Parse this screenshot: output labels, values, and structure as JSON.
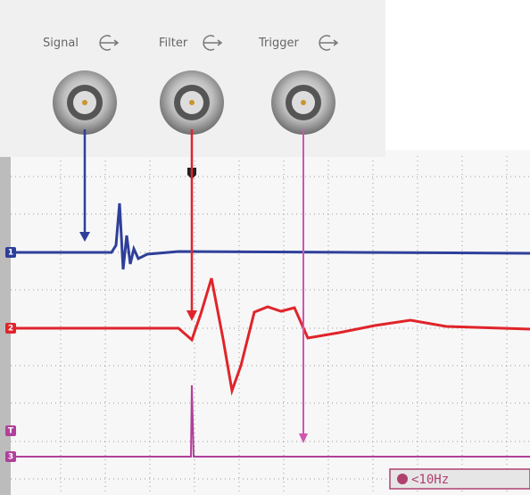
{
  "panel": {
    "connectors": [
      {
        "label": "Signal"
      },
      {
        "label": "Filter"
      },
      {
        "label": "Trigger"
      }
    ]
  },
  "scope": {
    "channels": [
      {
        "label": "1"
      },
      {
        "label": "2"
      },
      {
        "label": "T"
      },
      {
        "label": "3"
      }
    ],
    "readout": "<10Hz"
  }
}
